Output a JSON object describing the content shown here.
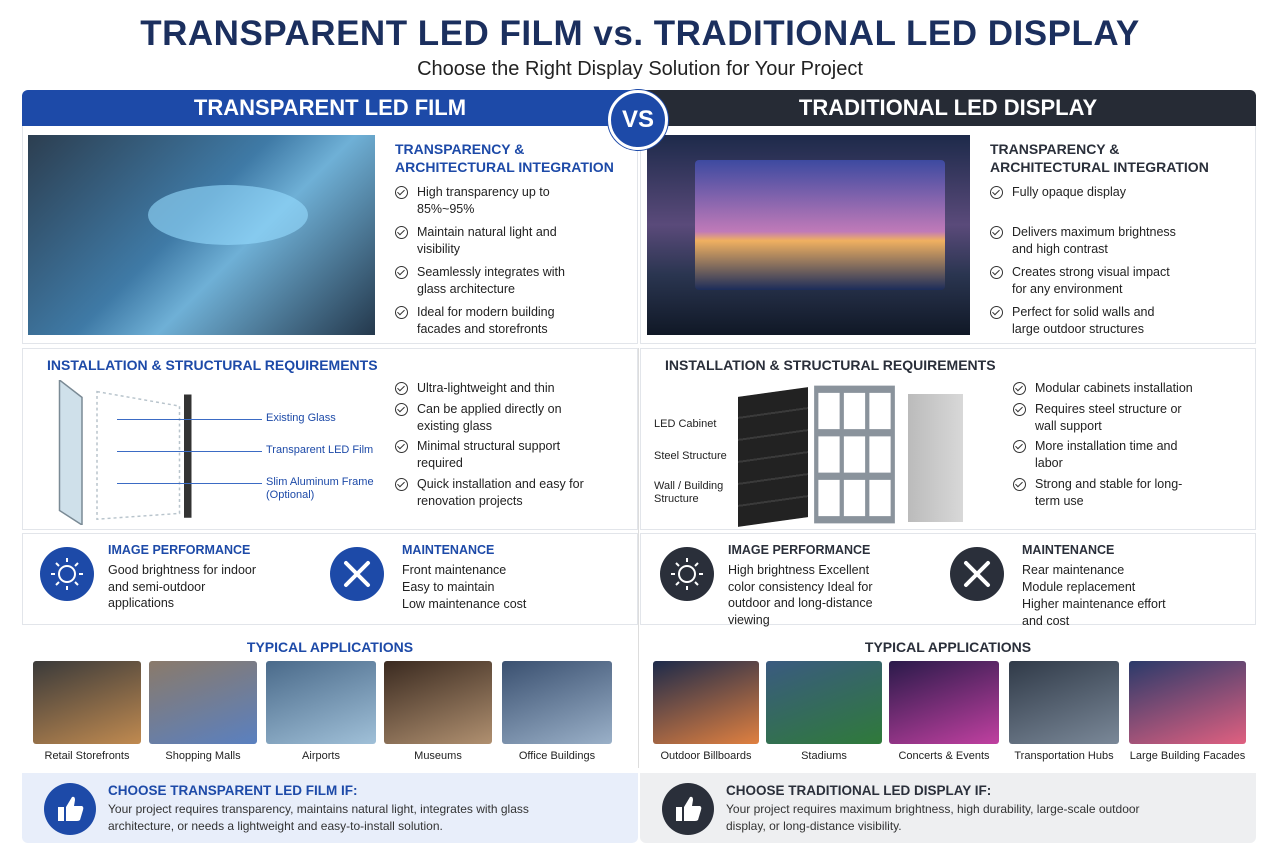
{
  "header": {
    "title": "TRANSPARENT LED FILM vs. TRADITIONAL LED DISPLAY",
    "subtitle": "Choose the Right Display Solution for Your Project",
    "vs": "VS"
  },
  "left": {
    "heading": "TRANSPARENT LED FILM",
    "transparency": {
      "title": "TRANSPARENCY & ARCHITECTURAL INTEGRATION",
      "items": [
        "High transparency up to 85%~95%",
        "Maintain natural light and visibility",
        "Seamlessly integrates with glass architecture",
        "Ideal for modern building facades and storefronts"
      ]
    },
    "installation": {
      "title": "INSTALLATION & STRUCTURAL REQUIREMENTS",
      "labels": [
        "Existing Glass",
        "Transparent LED Film",
        "Slim Aluminum Frame (Optional)"
      ],
      "items": [
        "Ultra-lightweight and thin",
        "Can be applied directly on existing glass",
        "Minimal structural support required",
        "Quick installation and easy for renovation projects"
      ]
    },
    "image_performance": {
      "title": "IMAGE PERFORMANCE",
      "text": "Good brightness for indoor and semi-outdoor applications"
    },
    "maintenance": {
      "title": "MAINTENANCE",
      "lines": [
        "Front maintenance",
        "Easy to maintain",
        "Low maintenance cost"
      ]
    },
    "applications": {
      "title": "TYPICAL APPLICATIONS",
      "items": [
        "Retail Storefronts",
        "Shopping Malls",
        "Airports",
        "Museums",
        "Office Buildings"
      ]
    },
    "choose": {
      "title": "CHOOSE TRANSPARENT LED FILM IF:",
      "text": "Your project requires transparency, maintains natural light, integrates with glass architecture, or needs a lightweight and easy-to-install solution."
    }
  },
  "right": {
    "heading": "TRADITIONAL LED DISPLAY",
    "transparency": {
      "title": "TRANSPARENCY & ARCHITECTURAL INTEGRATION",
      "items": [
        "Fully opaque display",
        "Delivers maximum brightness and high contrast",
        "Creates strong visual impact for any environment",
        "Perfect for solid walls and large outdoor structures"
      ]
    },
    "installation": {
      "title": "INSTALLATION & STRUCTURAL REQUIREMENTS",
      "labels": [
        "LED Cabinet",
        "Steel Structure",
        "Wall / Building Structure"
      ],
      "items": [
        "Modular cabinets installation",
        "Requires steel structure or wall support",
        "More installation time and labor",
        "Strong and stable for long-term use"
      ]
    },
    "image_performance": {
      "title": "IMAGE PERFORMANCE",
      "text": "High brightness Excellent color consistency Ideal for outdoor and long-distance viewing"
    },
    "maintenance": {
      "title": "MAINTENANCE",
      "lines": [
        "Rear maintenance",
        "Module replacement",
        "Higher maintenance effort and cost"
      ]
    },
    "applications": {
      "title": "TYPICAL APPLICATIONS",
      "items": [
        "Outdoor Billboards",
        "Stadiums",
        "Concerts & Events",
        "Transportation Hubs",
        "Large Building Facades"
      ]
    },
    "choose": {
      "title": "CHOOSE TRADITIONAL LED DISPLAY IF:",
      "text": "Your project requires maximum brightness, high durability, large-scale outdoor display, or long-distance visibility."
    }
  }
}
